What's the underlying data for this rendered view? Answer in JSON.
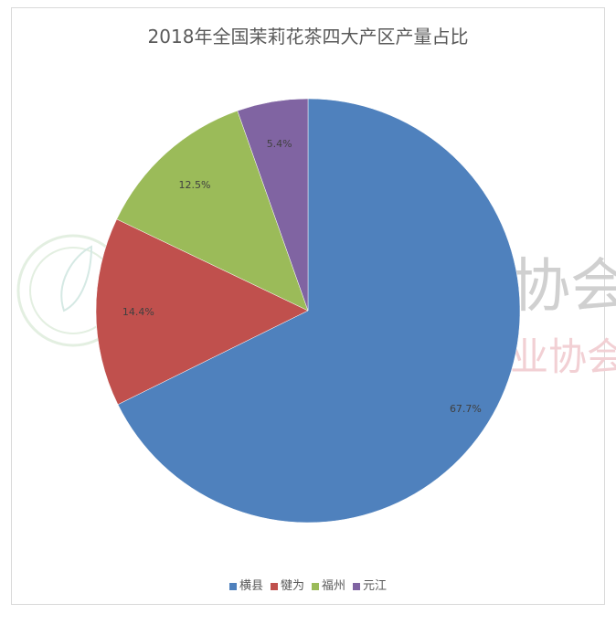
{
  "chart_data": {
    "type": "pie",
    "title": "2018年全国茉莉花茶四大产区产量占比",
    "categories": [
      "横县",
      "犍为",
      "福州",
      "元江"
    ],
    "values": [
      67.7,
      14.4,
      12.5,
      5.4
    ],
    "labels": [
      "67.7%",
      "14.4%",
      "12.5%",
      "5.4%"
    ],
    "colors": [
      "#4f81bd",
      "#c0504d",
      "#9bbb59",
      "#8064a2"
    ],
    "start_angle": "top, clockwise",
    "legend_position": "bottom"
  },
  "watermark": {
    "gray_text": "协会",
    "pink_text": "业协会",
    "logo": "tea-leaf-seal"
  }
}
